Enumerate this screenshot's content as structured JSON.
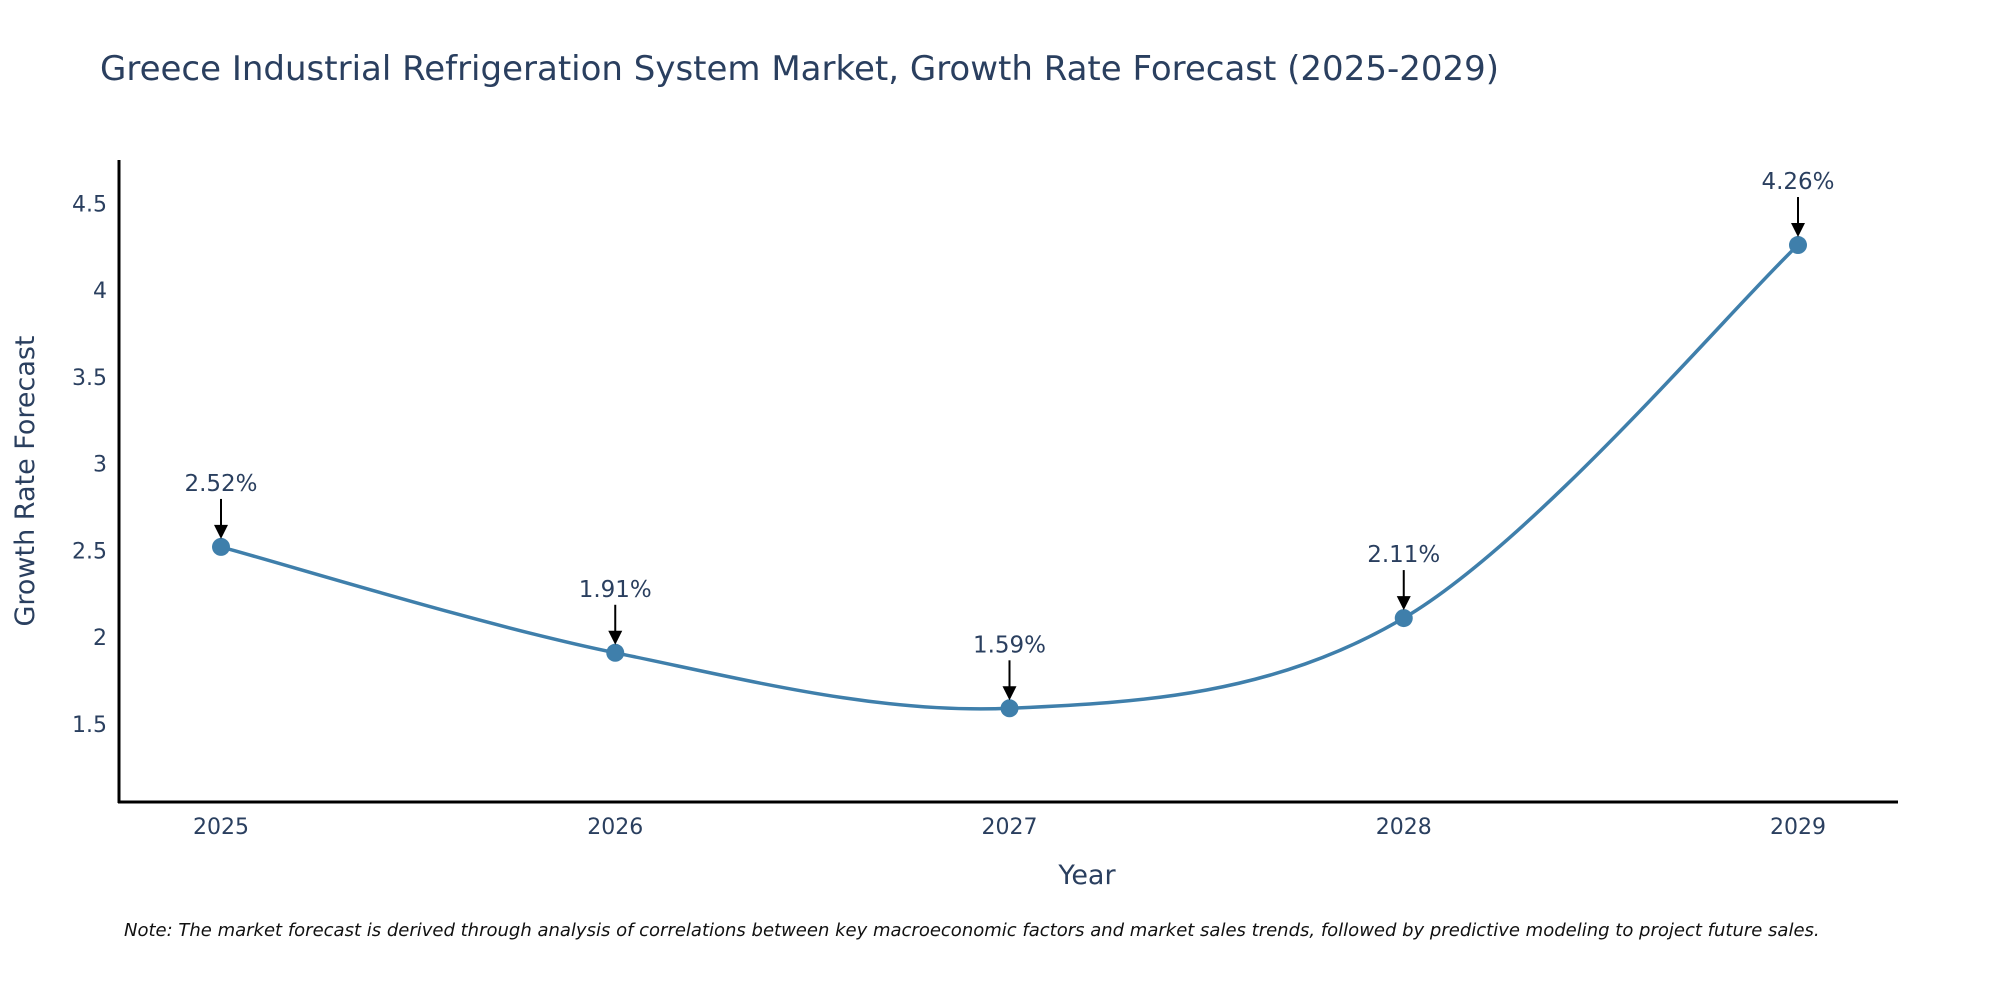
{
  "chart_data": {
    "type": "line",
    "title": "Greece Industrial Refrigeration System Market, Growth Rate Forecast (2025-2029)",
    "xlabel": "Year",
    "ylabel": "Growth Rate Forecast",
    "categories": [
      "2025",
      "2026",
      "2027",
      "2028",
      "2029"
    ],
    "values": [
      2.52,
      1.91,
      1.59,
      2.11,
      4.26
    ],
    "data_labels": [
      "2.52%",
      "1.91%",
      "1.59%",
      "2.11%",
      "4.26%"
    ],
    "ylim": [
      1.05,
      4.75
    ],
    "yticks": [
      1.5,
      2,
      2.5,
      3,
      3.5,
      4,
      4.5
    ],
    "ytick_labels": [
      "1.5",
      "2",
      "2.5",
      "3",
      "3.5",
      "4",
      "4.5"
    ],
    "line_shape": "spline",
    "grid": false,
    "colors": {
      "line": "#3f7fab",
      "marker": "#3f7fab",
      "arrow": "#000000",
      "text": "#2a3f5f",
      "axis": "#000000"
    }
  },
  "note": "Note: The market forecast is derived through analysis of correlations between key macroeconomic factors and market sales trends, followed by predictive modeling to project future sales."
}
